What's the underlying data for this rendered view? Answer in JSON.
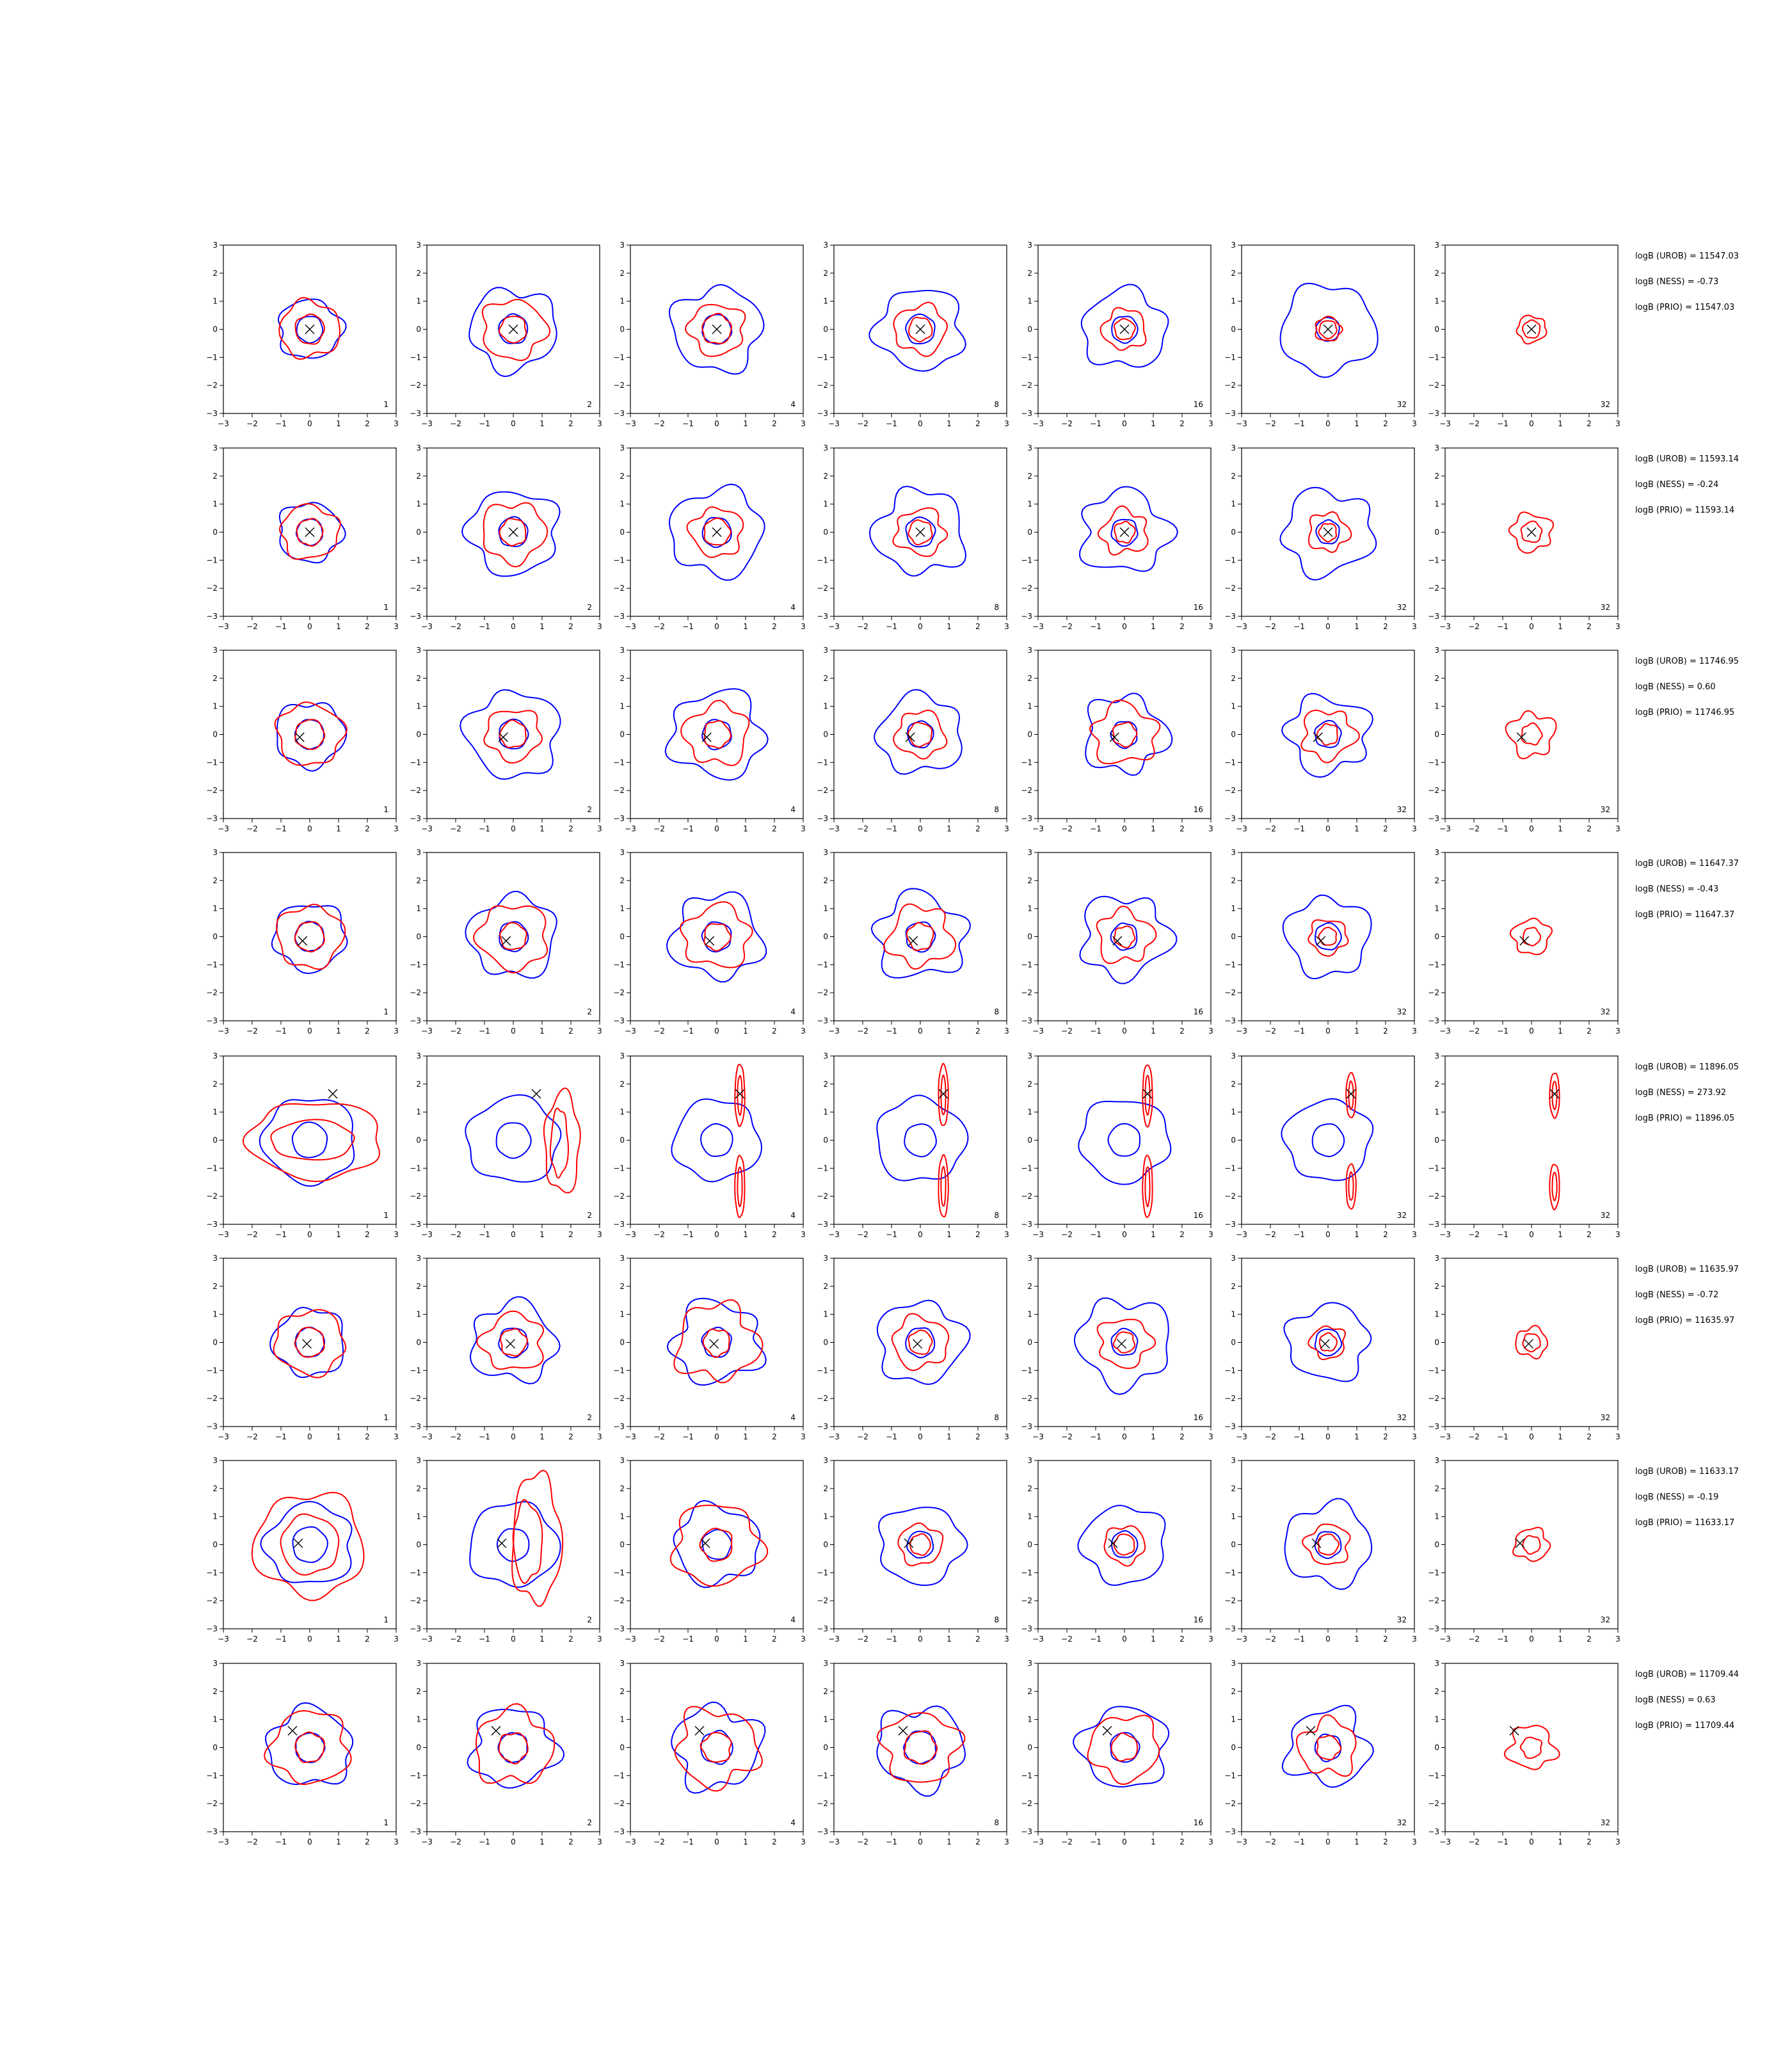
{
  "colors": {
    "blue": "#0000ff",
    "red": "#ff0000",
    "marker": "#000000",
    "axis": "#000000"
  },
  "chart_data": {
    "type": "contour-grid",
    "xlim": [
      -3,
      3
    ],
    "ylim": [
      -3,
      3
    ],
    "ticks": [
      "−3",
      "−2",
      "−1",
      "0",
      "1",
      "2",
      "3"
    ],
    "grid": false,
    "rows": [
      {
        "marker": [
          0,
          0
        ],
        "annotations": [
          "logB (UROB) = 11547.03",
          "logB (NESS) = -0.73",
          "logB (PRIO) = 11547.03"
        ],
        "panels": [
          {
            "n": "1",
            "blue": [
              1.1,
              0.45
            ],
            "red": [
              1.05,
              0.5
            ],
            "wob": 0.08
          },
          {
            "n": "2",
            "blue": [
              1.5,
              0.5
            ],
            "red": [
              1.1,
              0.45
            ],
            "wob": 0.1
          },
          {
            "n": "4",
            "blue": [
              1.55,
              0.5
            ],
            "red": [
              0.95,
              0.5
            ],
            "wob": 0.1
          },
          {
            "n": "8",
            "blue": [
              1.5,
              0.5
            ],
            "red": [
              0.9,
              0.4
            ],
            "wob": 0.1
          },
          {
            "n": "16",
            "blue": [
              1.45,
              0.45
            ],
            "red": [
              0.75,
              0.35
            ],
            "wob": 0.1
          },
          {
            "n": "32",
            "blue": [
              1.65,
              0.4
            ],
            "red": [
              0.45,
              0.3
            ],
            "wob": 0.08
          },
          {
            "n": "32",
            "blue": [],
            "red": [
              0.5,
              0.3
            ],
            "wob": 0.08
          }
        ]
      },
      {
        "marker": [
          0,
          0
        ],
        "annotations": [
          "logB (UROB) = 11593.14",
          "logB (NESS) = -0.24",
          "logB (PRIO) = 11593.14"
        ],
        "panels": [
          {
            "n": "1",
            "blue": [
              1.1,
              0.45
            ],
            "red": [
              1.0,
              0.45
            ],
            "wob": 0.08
          },
          {
            "n": "2",
            "blue": [
              1.55,
              0.5
            ],
            "red": [
              1.1,
              0.45
            ],
            "wob": 0.1
          },
          {
            "n": "4",
            "blue": [
              1.6,
              0.5
            ],
            "red": [
              0.9,
              0.45
            ],
            "wob": 0.1
          },
          {
            "n": "8",
            "blue": [
              1.55,
              0.5
            ],
            "red": [
              0.85,
              0.4
            ],
            "wob": 0.12
          },
          {
            "n": "16",
            "blue": [
              1.5,
              0.45
            ],
            "red": [
              0.8,
              0.35
            ],
            "wob": 0.14
          },
          {
            "n": "32",
            "blue": [
              1.55,
              0.4
            ],
            "red": [
              0.7,
              0.3
            ],
            "wob": 0.12
          },
          {
            "n": "32",
            "blue": [],
            "red": [
              0.7,
              0.35
            ],
            "wob": 0.12
          }
        ]
      },
      {
        "marker": [
          -0.35,
          -0.1
        ],
        "annotations": [
          "logB (UROB) = 11746.95",
          "logB (NESS) = 0.60",
          "logB (PRIO) = 11746.95"
        ],
        "panels": [
          {
            "n": "1",
            "blue": [
              1.2,
              0.5
            ],
            "red": [
              1.15,
              0.5
            ],
            "wob": 0.08
          },
          {
            "n": "2",
            "blue": [
              1.6,
              0.5
            ],
            "red": [
              0.95,
              0.45
            ],
            "wob": 0.1
          },
          {
            "n": "4",
            "blue": [
              1.6,
              0.5
            ],
            "red": [
              1.1,
              0.45
            ],
            "wob": 0.12
          },
          {
            "n": "8",
            "blue": [
              1.45,
              0.45
            ],
            "red": [
              0.85,
              0.4
            ],
            "wob": 0.1
          },
          {
            "n": "16",
            "blue": [
              1.4,
              0.45
            ],
            "red": [
              1.1,
              0.4
            ],
            "wob": 0.14
          },
          {
            "n": "32",
            "blue": [
              1.4,
              0.45
            ],
            "red": [
              0.9,
              0.35
            ],
            "wob": 0.14
          },
          {
            "n": "32",
            "blue": [],
            "red": [
              0.8,
              0.35
            ],
            "wob": 0.14
          }
        ]
      },
      {
        "marker": [
          -0.25,
          -0.15
        ],
        "annotations": [
          "logB (UROB) = 11647.37",
          "logB (NESS) = -0.43",
          "logB (PRIO) = 11647.37"
        ],
        "panels": [
          {
            "n": "1",
            "blue": [
              1.25,
              0.5
            ],
            "red": [
              1.15,
              0.5
            ],
            "wob": 0.08
          },
          {
            "n": "2",
            "blue": [
              1.5,
              0.5
            ],
            "red": [
              1.2,
              0.45
            ],
            "wob": 0.1
          },
          {
            "n": "4",
            "blue": [
              1.55,
              0.5
            ],
            "red": [
              1.15,
              0.45
            ],
            "wob": 0.12
          },
          {
            "n": "8",
            "blue": [
              1.55,
              0.5
            ],
            "red": [
              1.1,
              0.45
            ],
            "wob": 0.14
          },
          {
            "n": "16",
            "blue": [
              1.5,
              0.45
            ],
            "red": [
              0.95,
              0.35
            ],
            "wob": 0.14
          },
          {
            "n": "32",
            "blue": [
              1.45,
              0.45
            ],
            "red": [
              0.65,
              0.3
            ],
            "wob": 0.1
          },
          {
            "n": "32",
            "blue": [],
            "red": [
              0.65,
              0.3
            ],
            "wob": 0.1
          }
        ]
      },
      {
        "marker": [
          0.8,
          1.65
        ],
        "annotations": [
          "logB (UROB) = 11896.05",
          "logB (NESS) = 273.92",
          "logB (PRIO) = 11896.05"
        ],
        "panels": [
          {
            "n": "1",
            "blue": [
              1.6,
              0.6
            ],
            "red": [
              2.2,
              1.1
            ],
            "wob": 0.06,
            "shape": "wide"
          },
          {
            "n": "2",
            "blue": [
              1.6,
              0.6
            ],
            "red": [
              0.9,
              0.5
            ],
            "wob": 0.06,
            "shape": "right"
          },
          {
            "n": "4",
            "blue": [
              1.5,
              0.55
            ],
            "red": [
              1.1,
              0.7
            ],
            "wob": 0.06,
            "shape": "bi"
          },
          {
            "n": "8",
            "blue": [
              1.55,
              0.55
            ],
            "red": [
              1.1,
              0.7
            ],
            "wob": 0.06,
            "shape": "bi"
          },
          {
            "n": "16",
            "blue": [
              1.55,
              0.55
            ],
            "red": [
              1.1,
              0.7
            ],
            "wob": 0.06,
            "shape": "bi"
          },
          {
            "n": "32",
            "blue": [
              1.5,
              0.55
            ],
            "red": [
              0.8,
              0.5
            ],
            "wob": 0.06,
            "shape": "bi"
          },
          {
            "n": "32",
            "blue": [],
            "red": [
              0.8,
              0.5
            ],
            "wob": 0.06,
            "shape": "bi"
          }
        ]
      },
      {
        "marker": [
          -0.1,
          -0.05
        ],
        "annotations": [
          "logB (UROB) = 11635.97",
          "logB (NESS) = -0.72",
          "logB (PRIO) = 11635.97"
        ],
        "panels": [
          {
            "n": "1",
            "blue": [
              1.25,
              0.5
            ],
            "red": [
              1.2,
              0.5
            ],
            "wob": 0.08
          },
          {
            "n": "2",
            "blue": [
              1.45,
              0.5
            ],
            "red": [
              1.05,
              0.45
            ],
            "wob": 0.12
          },
          {
            "n": "4",
            "blue": [
              1.5,
              0.5
            ],
            "red": [
              1.4,
              0.45
            ],
            "wob": 0.14
          },
          {
            "n": "8",
            "blue": [
              1.5,
              0.5
            ],
            "red": [
              0.95,
              0.4
            ],
            "wob": 0.1
          },
          {
            "n": "16",
            "blue": [
              1.6,
              0.45
            ],
            "red": [
              0.9,
              0.35
            ],
            "wob": 0.12
          },
          {
            "n": "32",
            "blue": [
              1.4,
              0.45
            ],
            "red": [
              0.6,
              0.3
            ],
            "wob": 0.1
          },
          {
            "n": "32",
            "blue": [],
            "red": [
              0.55,
              0.3
            ],
            "wob": 0.1
          }
        ]
      },
      {
        "marker": [
          -0.4,
          0.05
        ],
        "annotations": [
          "logB (UROB) = 11633.17",
          "logB (NESS) = -0.19",
          "logB (PRIO) = 11633.17"
        ],
        "panels": [
          {
            "n": "1",
            "blue": [
              1.5,
              0.6
            ],
            "red": [
              1.9,
              1.0
            ],
            "wob": 0.08
          },
          {
            "n": "2",
            "blue": [
              1.55,
              0.55
            ],
            "red": [
              1.6,
              0.9
            ],
            "wob": 0.06,
            "shape": "tall"
          },
          {
            "n": "4",
            "blue": [
              1.45,
              0.5
            ],
            "red": [
              1.5,
              0.55
            ],
            "wob": 0.1
          },
          {
            "n": "8",
            "blue": [
              1.45,
              0.45
            ],
            "red": [
              0.75,
              0.35
            ],
            "wob": 0.08
          },
          {
            "n": "16",
            "blue": [
              1.45,
              0.45
            ],
            "red": [
              0.7,
              0.35
            ],
            "wob": 0.08
          },
          {
            "n": "32",
            "blue": [
              1.5,
              0.45
            ],
            "red": [
              0.75,
              0.35
            ],
            "wob": 0.1
          },
          {
            "n": "32",
            "blue": [],
            "red": [
              0.6,
              0.3
            ],
            "wob": 0.1
          }
        ]
      },
      {
        "marker": [
          -0.6,
          0.6
        ],
        "annotations": [
          "logB (UROB) = 11709.44",
          "logB (NESS) = 0.63",
          "logB (PRIO) = 11709.44"
        ],
        "panels": [
          {
            "n": "1",
            "blue": [
              1.45,
              0.5
            ],
            "red": [
              1.35,
              0.5
            ],
            "wob": 0.1
          },
          {
            "n": "2",
            "blue": [
              1.45,
              0.5
            ],
            "red": [
              1.35,
              0.5
            ],
            "wob": 0.12
          },
          {
            "n": "4",
            "blue": [
              1.5,
              0.55
            ],
            "red": [
              1.4,
              0.5
            ],
            "wob": 0.14
          },
          {
            "n": "8",
            "blue": [
              1.5,
              0.55
            ],
            "red": [
              1.3,
              0.55
            ],
            "wob": 0.12
          },
          {
            "n": "16",
            "blue": [
              1.5,
              0.5
            ],
            "red": [
              1.2,
              0.45
            ],
            "wob": 0.1
          },
          {
            "n": "32",
            "blue": [
              1.4,
              0.45
            ],
            "red": [
              1.0,
              0.4
            ],
            "wob": 0.14
          },
          {
            "n": "32",
            "blue": [],
            "red": [
              0.8,
              0.35
            ],
            "wob": 0.14
          }
        ]
      }
    ]
  }
}
